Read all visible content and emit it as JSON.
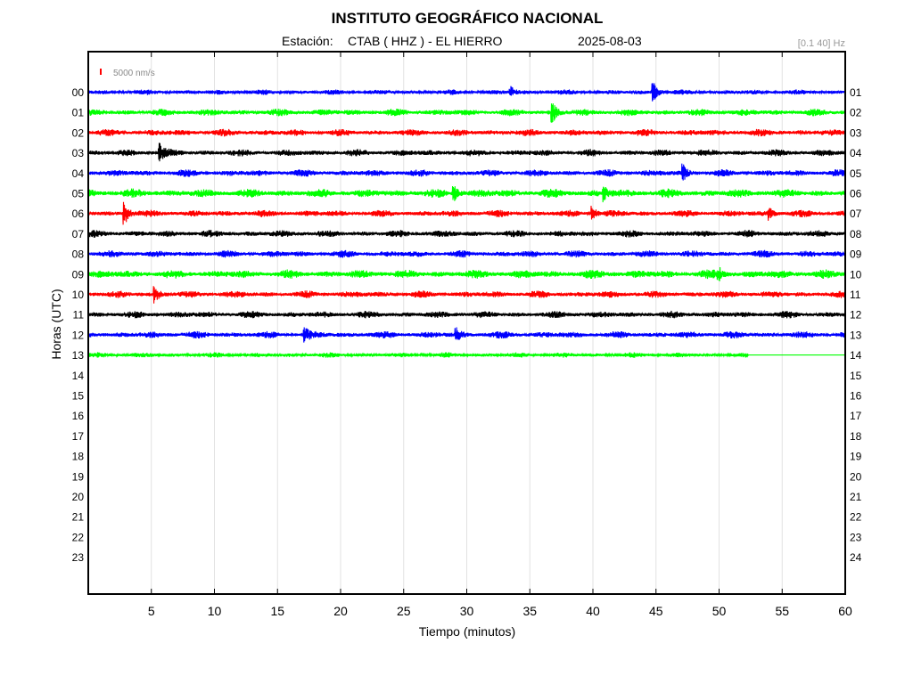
{
  "title": "INSTITUTO GEOGRÁFICO NACIONAL",
  "station_label": "Estación:",
  "station": "CTAB ( HHZ ) - EL HIERRO",
  "date": "2025-08-03",
  "filter": "[0.1 40] Hz",
  "scale_label": "5000 nm/s",
  "colors": {
    "scale_bar": "#ff0000"
  },
  "chart_data": {
    "type": "line",
    "title": "INSTITUTO GEOGRÁFICO NACIONAL",
    "xlabel": "Tiempo (minutos)",
    "ylabel": "Horas (UTC)",
    "xlim": [
      0,
      60
    ],
    "x_ticks": [
      5,
      10,
      15,
      20,
      25,
      30,
      35,
      40,
      45,
      50,
      55,
      60
    ],
    "x_tick_labels": [
      "5",
      "10",
      "15",
      "20",
      "25",
      "30",
      "35",
      "40",
      "45",
      "50",
      "55",
      "60"
    ],
    "left_hour_labels": [
      "00",
      "01",
      "02",
      "03",
      "04",
      "05",
      "06",
      "07",
      "08",
      "09",
      "10",
      "11",
      "12",
      "13",
      "14",
      "15",
      "16",
      "17",
      "18",
      "19",
      "20",
      "21",
      "22",
      "23"
    ],
    "right_hour_labels": [
      "01",
      "02",
      "03",
      "04",
      "05",
      "06",
      "07",
      "08",
      "09",
      "10",
      "11",
      "12",
      "13",
      "14",
      "15",
      "16",
      "17",
      "18",
      "19",
      "20",
      "21",
      "22",
      "23",
      "24"
    ],
    "grid": "vertical",
    "series": [
      {
        "hour": 0,
        "color": "#0000ff",
        "amplitude": 3,
        "events": [
          {
            "t": 33.5,
            "amp": 6
          },
          {
            "t": 44.8,
            "amp": 12
          }
        ]
      },
      {
        "hour": 1,
        "color": "#00ff00",
        "amplitude": 4,
        "events": [
          {
            "t": 36.8,
            "amp": 12
          }
        ]
      },
      {
        "hour": 2,
        "color": "#ff0000",
        "amplitude": 4,
        "events": []
      },
      {
        "hour": 3,
        "color": "#000000",
        "amplitude": 4,
        "events": [
          {
            "t": 5.7,
            "amp": 9
          }
        ]
      },
      {
        "hour": 4,
        "color": "#0000ff",
        "amplitude": 4,
        "events": [
          {
            "t": 47.2,
            "amp": 8
          }
        ]
      },
      {
        "hour": 5,
        "color": "#00ff00",
        "amplitude": 5,
        "events": [
          {
            "t": 29.0,
            "amp": 8
          },
          {
            "t": 40.9,
            "amp": 8
          }
        ]
      },
      {
        "hour": 6,
        "color": "#ff0000",
        "amplitude": 4,
        "events": [
          {
            "t": 2.9,
            "amp": 12
          },
          {
            "t": 40.0,
            "amp": 7
          },
          {
            "t": 54.0,
            "amp": 6
          }
        ]
      },
      {
        "hour": 7,
        "color": "#000000",
        "amplitude": 4,
        "events": []
      },
      {
        "hour": 8,
        "color": "#0000ff",
        "amplitude": 4,
        "events": []
      },
      {
        "hour": 9,
        "color": "#00ff00",
        "amplitude": 5,
        "events": [
          {
            "t": 50.0,
            "amp": 6
          }
        ]
      },
      {
        "hour": 10,
        "color": "#ff0000",
        "amplitude": 4,
        "events": [
          {
            "t": 5.3,
            "amp": 8
          }
        ]
      },
      {
        "hour": 11,
        "color": "#000000",
        "amplitude": 4,
        "events": []
      },
      {
        "hour": 12,
        "color": "#0000ff",
        "amplitude": 4,
        "events": [
          {
            "t": 17.2,
            "amp": 6
          },
          {
            "t": 29.2,
            "amp": 6
          }
        ]
      },
      {
        "hour": 13,
        "color": "#00ff00",
        "amplitude": 3,
        "events": [],
        "end_minute": 52.3
      }
    ]
  }
}
